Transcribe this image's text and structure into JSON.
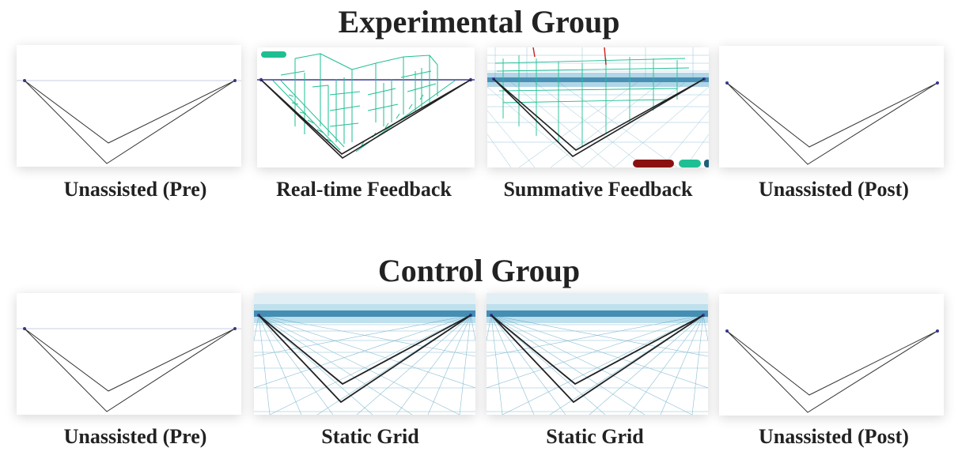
{
  "groups": [
    {
      "title": "Experimental Group",
      "panels": [
        {
          "caption": "Unassisted (Pre)",
          "kind": "plain"
        },
        {
          "caption": "Real-time Feedback",
          "kind": "realtime"
        },
        {
          "caption": "Summative Feedback",
          "kind": "summative"
        },
        {
          "caption": "Unassisted (Post)",
          "kind": "plain"
        }
      ]
    },
    {
      "title": "Control Group",
      "panels": [
        {
          "caption": "Unassisted (Pre)",
          "kind": "plain"
        },
        {
          "caption": "Static Grid",
          "kind": "grid"
        },
        {
          "caption": "Static Grid",
          "kind": "grid"
        },
        {
          "caption": "Unassisted (Post)",
          "kind": "plain"
        }
      ]
    }
  ],
  "colors": {
    "horizon": "#c9cde0",
    "stroke": "#333333",
    "vanishing_point": "#3a3a9a",
    "feedback_lines": "#1fbf93",
    "grid_lines": "#3a92b5",
    "badge_red": "#8a1010",
    "badge_green": "#1fbf93"
  }
}
